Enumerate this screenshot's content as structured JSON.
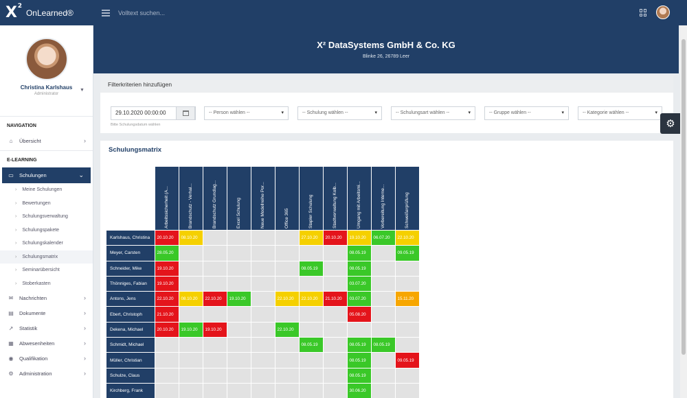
{
  "app": {
    "logo": "X",
    "logo_sup": "2",
    "name": "OnLearned®"
  },
  "search": {
    "placeholder": "Volltext suchen..."
  },
  "profile": {
    "name": "Christina Karlshaus",
    "role": "Administrator"
  },
  "nav": {
    "section_navigation": "NAVIGATION",
    "uebersicht": "Übersicht",
    "section_elearning": "E-LEARNING",
    "schulungen": "Schulungen",
    "sub_items": [
      "Meine Schulungen",
      "Bewertungen",
      "Schulungsverwaltung",
      "Schulungspakete",
      "Schulungskalender",
      "Schulungsmatrix",
      "Seminarübersicht",
      "Stoberkasten"
    ],
    "items": [
      "Nachrichten",
      "Dokumente",
      "Statistik",
      "Abwesenheiten",
      "Qualifikation",
      "Administration"
    ]
  },
  "company": {
    "name": "X² DataSystems GmbH & Co. KG",
    "address": "Blinke 26, 26789 Leer"
  },
  "filter": {
    "title": "Filterkriterien hinzufügen",
    "date_value": "29.10.2020 00:00:00",
    "date_hint": "Bitte Schulungsdatum wählen",
    "selects": [
      "-- Person wählen --",
      "-- Schulung wählen --",
      "-- Schulungsart wählen --",
      "-- Gruppe wählen --",
      "-- Kategorie wählen --"
    ]
  },
  "matrix": {
    "title": "Schulungsmatrix",
    "columns": [
      "Arbeitssicherheit (A...",
      "Brandschutz - Verhal...",
      "Brandschutz Grundlag...",
      "Excel Schulung",
      "Neue Modellreihe Por...",
      "Office 365",
      "Stapler Schulung",
      "Stadtverwaltung Kolb...",
      "Umgang mit Arbeitsmi...",
      "Vorbereitung Interne...",
      "Schweißerprüfung"
    ],
    "rows": [
      {
        "name": "Karlshaus, Christina",
        "cells": [
          [
            "20.10.20",
            "red"
          ],
          [
            "08.10.20",
            "yellow"
          ],
          [
            "",
            ""
          ],
          [
            "",
            ""
          ],
          [
            "",
            ""
          ],
          [
            "",
            ""
          ],
          [
            "27.10.20",
            "yellow"
          ],
          [
            "20.10.20",
            "red"
          ],
          [
            "19.10.20",
            "yellow"
          ],
          [
            "06.07.20",
            "green"
          ],
          [
            "22.10.20",
            "yellow"
          ]
        ]
      },
      {
        "name": "Meyer, Carsten",
        "cells": [
          [
            "28.05.20",
            "green"
          ],
          [
            "",
            ""
          ],
          [
            "",
            ""
          ],
          [
            "",
            ""
          ],
          [
            "",
            ""
          ],
          [
            "",
            ""
          ],
          [
            "",
            ""
          ],
          [
            "",
            ""
          ],
          [
            "08.05.19",
            "green"
          ],
          [
            "",
            ""
          ],
          [
            "09.05.19",
            "green"
          ]
        ]
      },
      {
        "name": "Schneider, Mike",
        "cells": [
          [
            "19.10.20",
            "red"
          ],
          [
            "",
            ""
          ],
          [
            "",
            ""
          ],
          [
            "",
            ""
          ],
          [
            "",
            ""
          ],
          [
            "",
            ""
          ],
          [
            "08.05.19",
            "green"
          ],
          [
            "",
            ""
          ],
          [
            "08.05.19",
            "green"
          ],
          [
            "",
            ""
          ],
          [
            "",
            ""
          ]
        ]
      },
      {
        "name": "Thönniges, Fabian",
        "cells": [
          [
            "19.10.20",
            "red"
          ],
          [
            "",
            ""
          ],
          [
            "",
            ""
          ],
          [
            "",
            ""
          ],
          [
            "",
            ""
          ],
          [
            "",
            ""
          ],
          [
            "",
            ""
          ],
          [
            "",
            ""
          ],
          [
            "03.07.20",
            "green"
          ],
          [
            "",
            ""
          ],
          [
            "",
            ""
          ]
        ]
      },
      {
        "name": "Antons, Jens",
        "cells": [
          [
            "22.10.20",
            "red"
          ],
          [
            "08.10.20",
            "yellow"
          ],
          [
            "22.10.20",
            "red"
          ],
          [
            "19.10.20",
            "green"
          ],
          [
            "",
            ""
          ],
          [
            "22.10.20",
            "yellow"
          ],
          [
            "22.10.20",
            "yellow"
          ],
          [
            "21.10.20",
            "red"
          ],
          [
            "03.07.20",
            "green"
          ],
          [
            "",
            ""
          ],
          [
            "15.11.20",
            "orange"
          ]
        ]
      },
      {
        "name": "Ebert, Christoph",
        "cells": [
          [
            "21.10.20",
            "red"
          ],
          [
            "",
            ""
          ],
          [
            "",
            ""
          ],
          [
            "",
            ""
          ],
          [
            "",
            ""
          ],
          [
            "",
            ""
          ],
          [
            "",
            ""
          ],
          [
            "",
            ""
          ],
          [
            "05.08.20",
            "red"
          ],
          [
            "",
            ""
          ],
          [
            "",
            ""
          ]
        ]
      },
      {
        "name": "Dekena, Michael",
        "cells": [
          [
            "20.10.20",
            "red"
          ],
          [
            "19.10.20",
            "green"
          ],
          [
            "19.10.20",
            "red"
          ],
          [
            "",
            ""
          ],
          [
            "",
            ""
          ],
          [
            "22.10.20",
            "green"
          ],
          [
            "",
            ""
          ],
          [
            "",
            ""
          ],
          [
            "",
            ""
          ],
          [
            "",
            ""
          ],
          [
            "",
            ""
          ]
        ]
      },
      {
        "name": "Schmidt, Michael",
        "cells": [
          [
            "",
            ""
          ],
          [
            "",
            ""
          ],
          [
            "",
            ""
          ],
          [
            "",
            ""
          ],
          [
            "",
            ""
          ],
          [
            "",
            ""
          ],
          [
            "08.05.19",
            "green"
          ],
          [
            "",
            ""
          ],
          [
            "08.05.19",
            "green"
          ],
          [
            "08.05.19",
            "green"
          ],
          [
            "",
            ""
          ]
        ]
      },
      {
        "name": "Müller, Christian",
        "cells": [
          [
            "",
            ""
          ],
          [
            "",
            ""
          ],
          [
            "",
            ""
          ],
          [
            "",
            ""
          ],
          [
            "",
            ""
          ],
          [
            "",
            ""
          ],
          [
            "",
            ""
          ],
          [
            "",
            ""
          ],
          [
            "08.05.19",
            "green"
          ],
          [
            "",
            ""
          ],
          [
            "09.05.19",
            "red"
          ]
        ]
      },
      {
        "name": "Schulze, Claus",
        "cells": [
          [
            "",
            ""
          ],
          [
            "",
            ""
          ],
          [
            "",
            ""
          ],
          [
            "",
            ""
          ],
          [
            "",
            ""
          ],
          [
            "",
            ""
          ],
          [
            "",
            ""
          ],
          [
            "",
            ""
          ],
          [
            "08.05.19",
            "green"
          ],
          [
            "",
            ""
          ],
          [
            "",
            ""
          ]
        ]
      },
      {
        "name": "Kirchberg, Frank",
        "cells": [
          [
            "",
            ""
          ],
          [
            "",
            ""
          ],
          [
            "",
            ""
          ],
          [
            "",
            ""
          ],
          [
            "",
            ""
          ],
          [
            "",
            ""
          ],
          [
            "",
            ""
          ],
          [
            "",
            ""
          ],
          [
            "30.06.20",
            "green"
          ],
          [
            "",
            ""
          ],
          [
            "",
            ""
          ]
        ]
      }
    ]
  },
  "colors": {
    "primary": "#213f67",
    "red": "#e4141b",
    "green": "#3ac828",
    "yellow": "#f5d000",
    "orange": "#f7a600"
  }
}
